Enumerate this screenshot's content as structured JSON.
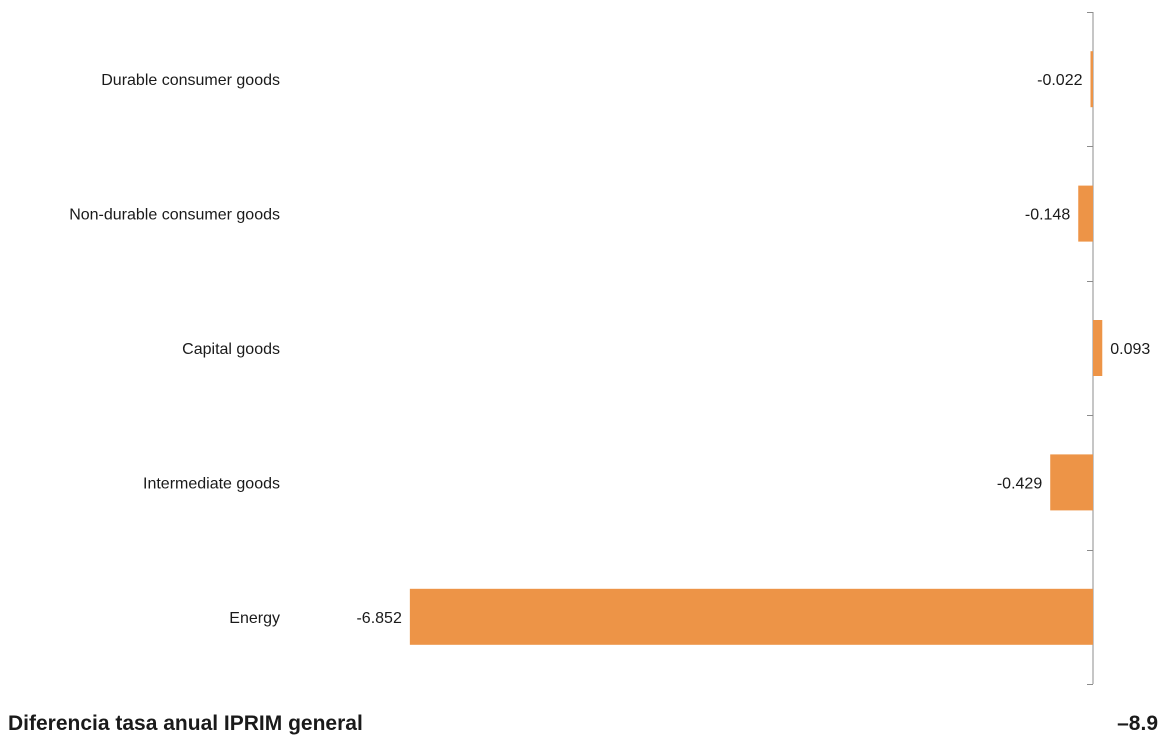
{
  "chart_data": {
    "type": "bar",
    "orientation": "horizontal",
    "categories": [
      "Durable consumer goods",
      "Non-durable consumer goods",
      "Capital goods",
      "Intermediate goods",
      "Energy"
    ],
    "values": [
      -0.022,
      -0.148,
      0.093,
      -0.429,
      -6.852
    ],
    "value_labels": [
      "-0.022",
      "-0.148",
      "0.093",
      "-0.429",
      "-6.852"
    ],
    "bar_color": "#ED9447",
    "axis_color": "#8c8c8c",
    "grid": false,
    "legend": "none"
  },
  "summary": {
    "label": "Diferencia tasa anual IPRIM general",
    "value": "–8.9"
  }
}
